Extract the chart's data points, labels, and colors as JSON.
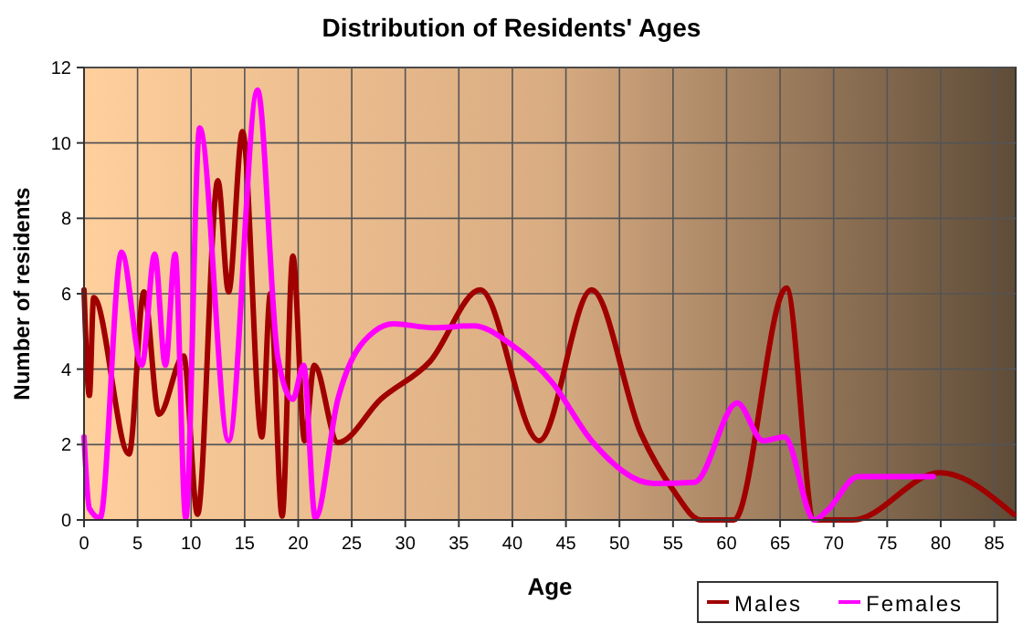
{
  "chart_data": {
    "type": "line",
    "title": "Distribution of Residents' Ages",
    "xlabel": "Age",
    "ylabel": "Number of residents",
    "xlim": [
      0,
      87
    ],
    "ylim": [
      0,
      12
    ],
    "xticks": [
      0,
      5,
      10,
      15,
      20,
      25,
      30,
      35,
      40,
      45,
      50,
      55,
      60,
      65,
      70,
      75,
      80,
      85
    ],
    "yticks": [
      0,
      2,
      4,
      6,
      8,
      10,
      12
    ],
    "grid": true,
    "legend": "bottom right",
    "marker": "none",
    "line_style": "solid",
    "series": [
      {
        "name": "Males",
        "color": "#a00000",
        "x": [
          0,
          0.5,
          0.9,
          4.2,
          5.6,
          7,
          9.3,
          10.6,
          12.5,
          13.5,
          14.8,
          16.6,
          17.4,
          18.5,
          19.5,
          20.6,
          21.5,
          23.7,
          27.7,
          32.3,
          37,
          42.5,
          47.4,
          52,
          55,
          57.6,
          60.7,
          65.6,
          68.2,
          71.8,
          79.9,
          86.8
        ],
        "values": [
          6.1,
          3.3,
          5.9,
          1.75,
          6.05,
          2.8,
          4.35,
          0.15,
          9,
          6.05,
          10.3,
          2.2,
          6,
          0.1,
          7,
          2.1,
          4.1,
          2.05,
          3.2,
          4.2,
          6.1,
          2.1,
          6.1,
          2.3,
          0.8,
          0,
          0,
          6.15,
          0,
          0,
          1.25,
          0.15
        ]
      },
      {
        "name": "Females",
        "color": "#ff00ff",
        "x": [
          0,
          0.5,
          1.5,
          3.5,
          5.4,
          6.6,
          7.6,
          8.5,
          9.5,
          10.8,
          13.5,
          16.2,
          18.1,
          19.5,
          20.5,
          21.6,
          23.7,
          27.1,
          28.9,
          32.6,
          36.4,
          39.9,
          43.7,
          47.4,
          53.2,
          57,
          61,
          63.4,
          65.4,
          68.2,
          69.4,
          72.3,
          79.3
        ],
        "values": [
          2.2,
          0.3,
          0.05,
          7.1,
          4.1,
          7.05,
          4.1,
          7.05,
          0.05,
          10.4,
          2.1,
          11.4,
          4.3,
          3.2,
          4.1,
          0.05,
          3.2,
          5,
          5.2,
          5.1,
          5.15,
          4.65,
          3.65,
          2.1,
          0.97,
          1,
          3.1,
          2.1,
          2.2,
          0,
          0.25,
          1.15,
          1.15
        ]
      }
    ]
  }
}
